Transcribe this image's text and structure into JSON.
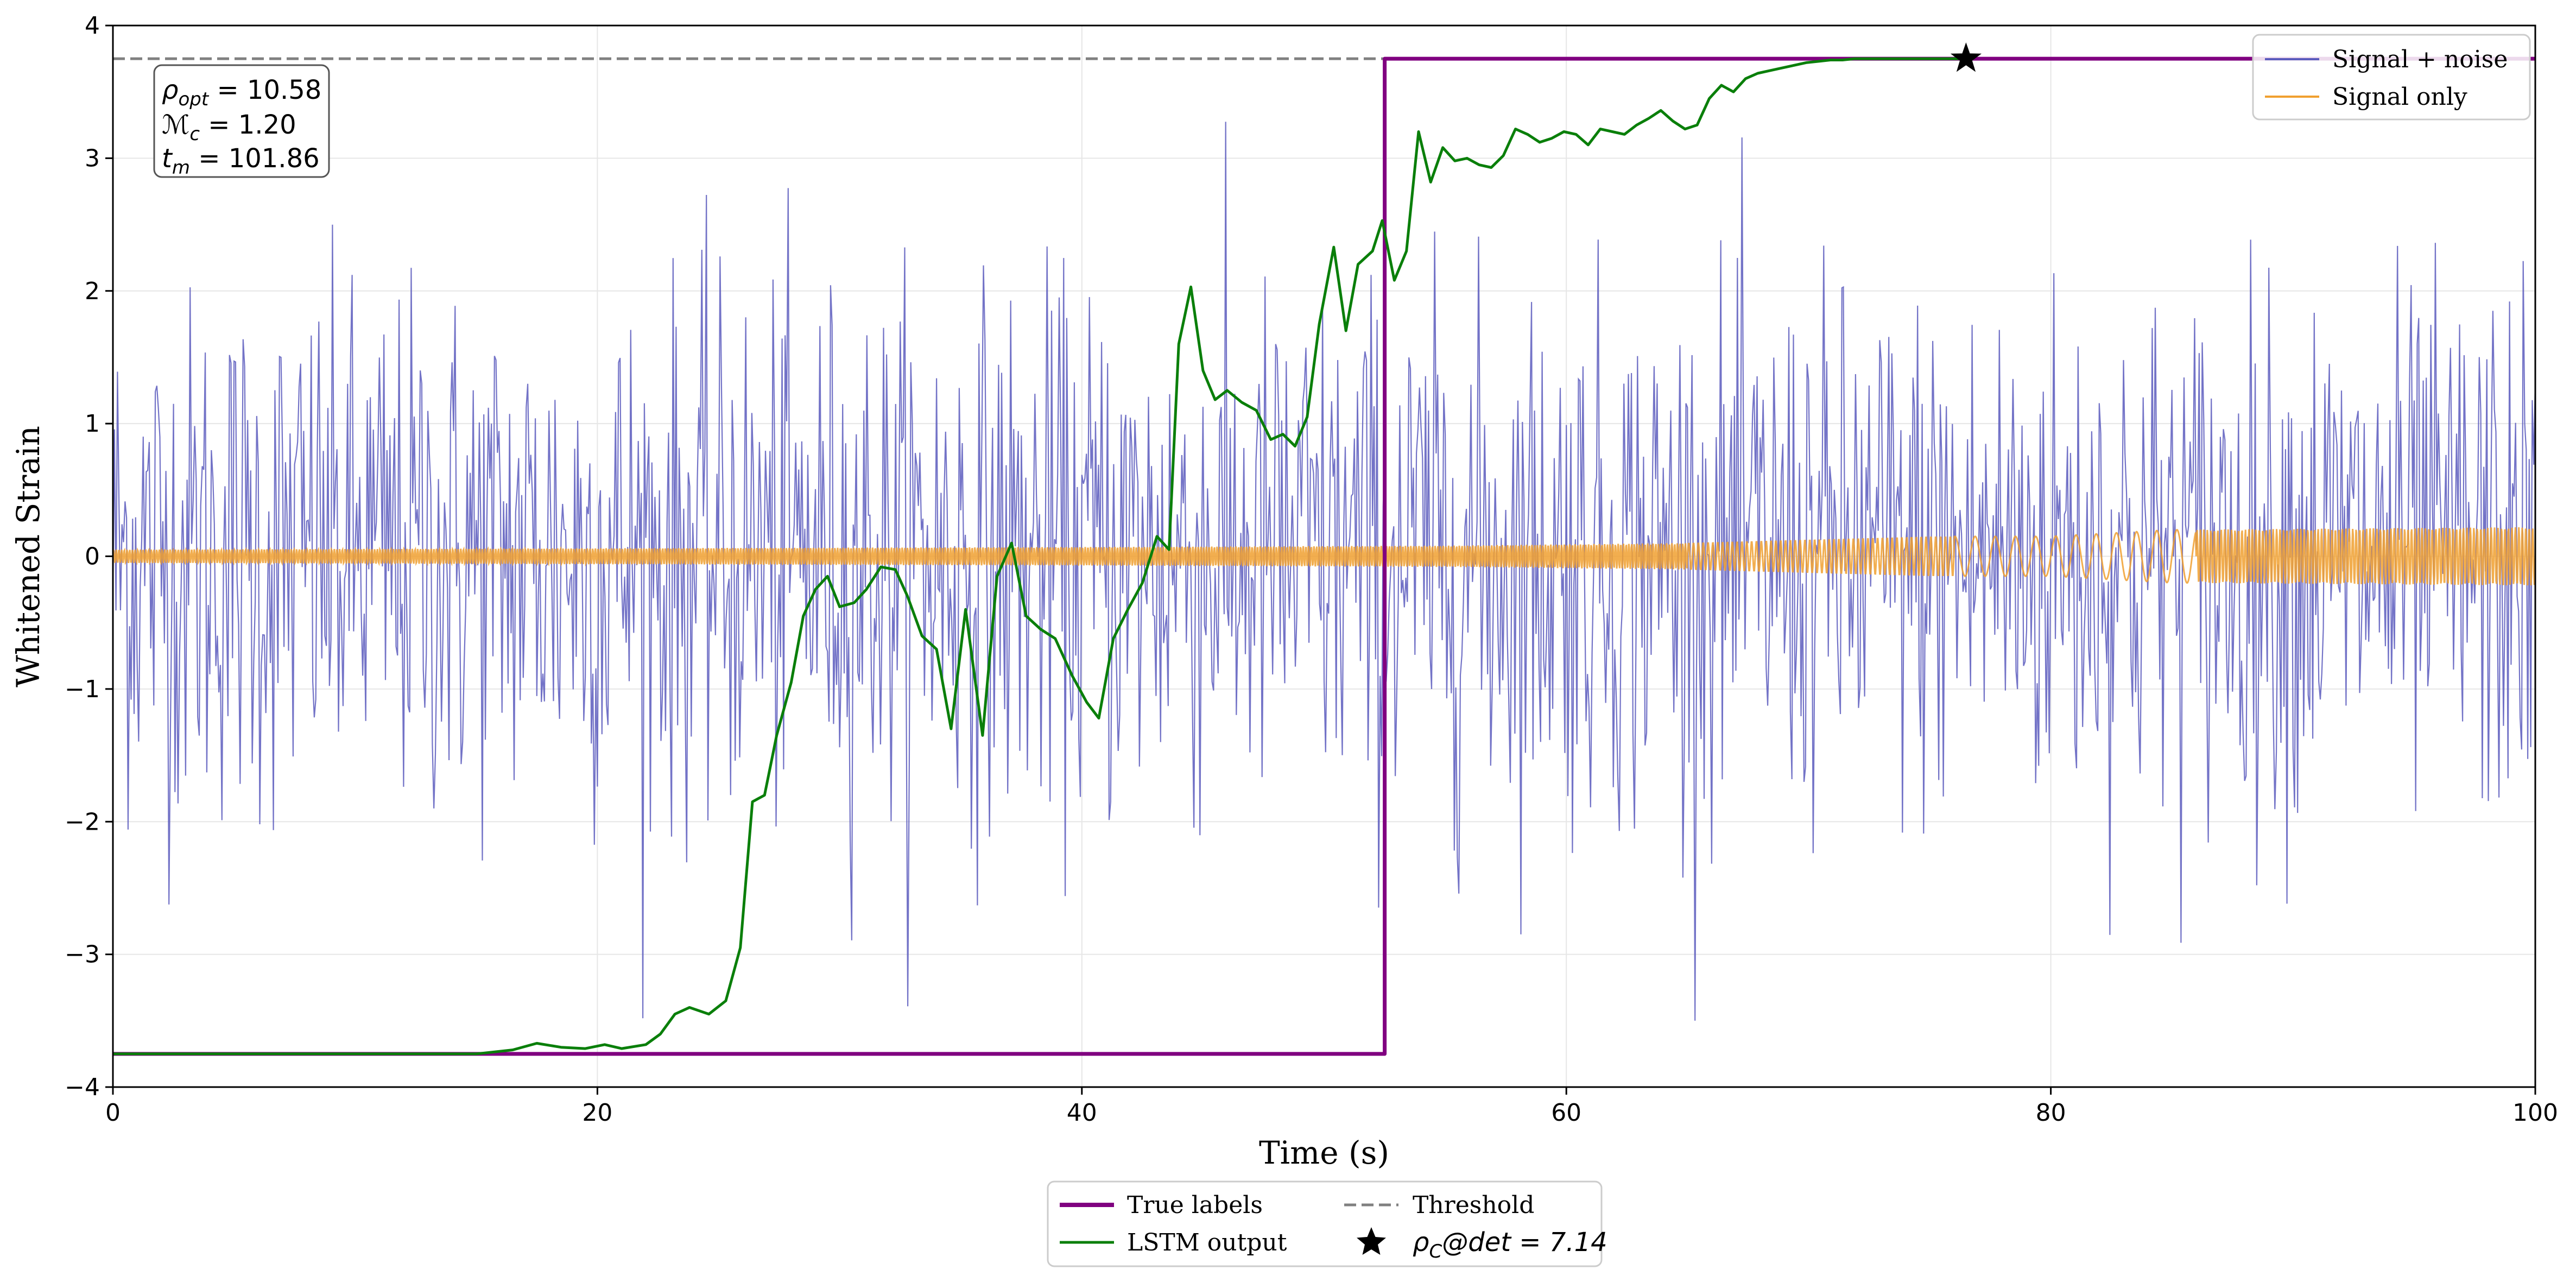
{
  "chart_data": {
    "type": "line",
    "title": "",
    "xlabel": "Time (s)",
    "ylabel": "Whitened Strain",
    "xlim": [
      0,
      100
    ],
    "ylim": [
      -4,
      4
    ],
    "x_ticks": [
      "0",
      "20",
      "40",
      "60",
      "80",
      "100"
    ],
    "y_ticks": [
      "−4",
      "−3",
      "−2",
      "−1",
      "0",
      "1",
      "2",
      "3",
      "4"
    ],
    "grid": true,
    "threshold": 3.75,
    "detection_point": {
      "x": 76.5,
      "y": 3.75
    },
    "annotation": {
      "rho_opt": "ρ",
      "rho_opt_sub": "opt",
      "rho_opt_val": " = 10.58",
      "mc": "ℳ",
      "mc_sub": "c",
      "mc_val": " = 1.20",
      "tm": "t",
      "tm_sub": "m",
      "tm_val": " = 101.86"
    },
    "noise_trace": {
      "name": "Signal + noise",
      "color": "#5b5bbd",
      "description_stats": {
        "center": 0,
        "typical_amplitude": 1.4,
        "max_abs": 3.5,
        "samples": 1600
      }
    },
    "signal_trace": {
      "name": "Signal only",
      "color": "#f0a030",
      "envelope": [
        [
          0,
          0.05
        ],
        [
          20,
          0.06
        ],
        [
          40,
          0.07
        ],
        [
          55,
          0.08
        ],
        [
          65,
          0.1
        ],
        [
          75,
          0.15
        ],
        [
          80,
          0.15
        ],
        [
          85,
          0.2
        ],
        [
          100,
          0.22
        ]
      ]
    },
    "series": [
      {
        "name": "True labels",
        "color": "#800080",
        "x": [
          0,
          52.5,
          52.5,
          100
        ],
        "y": [
          -3.75,
          -3.75,
          3.75,
          3.75
        ]
      },
      {
        "name": "LSTM output",
        "color": "#0a7f0a",
        "x": [
          0,
          15,
          16.5,
          17.5,
          18.5,
          19.5,
          20.3,
          21,
          22,
          22.6,
          23.2,
          23.8,
          24.6,
          25.3,
          25.9,
          26.4,
          26.9,
          27.4,
          28,
          28.5,
          29,
          29.5,
          30,
          30.6,
          31.1,
          31.7,
          32.3,
          32.8,
          33.4,
          34,
          34.6,
          35.2,
          35.9,
          36.5,
          37.1,
          37.7,
          38.3,
          38.9,
          39.6,
          40.2,
          40.7,
          41.3,
          41.9,
          42.5,
          43.1,
          43.6,
          44,
          44.5,
          45,
          45.5,
          46,
          46.6,
          47.2,
          47.8,
          48.3,
          48.8,
          49.3,
          49.8,
          50.4,
          50.9,
          51.4,
          52,
          52.4,
          52.9,
          53.4,
          53.9,
          54.4,
          54.9,
          55.4,
          55.9,
          56.4,
          56.9,
          57.4,
          57.9,
          58.4,
          58.9,
          59.4,
          59.9,
          60.4,
          60.9,
          61.4,
          61.9,
          62.4,
          62.9,
          63.4,
          63.9,
          64.4,
          64.9,
          65.4,
          65.9,
          66.4,
          66.9,
          67.4,
          67.9,
          68.4,
          68.9,
          69.4,
          69.9,
          70.4,
          70.9,
          71.4,
          71.9,
          72.4,
          72.9,
          73.4,
          73.9,
          74.4,
          75,
          76.5
        ],
        "y": [
          -3.75,
          -3.75,
          -3.72,
          -3.67,
          -3.7,
          -3.71,
          -3.68,
          -3.71,
          -3.68,
          -3.6,
          -3.45,
          -3.4,
          -3.45,
          -3.35,
          -2.95,
          -1.85,
          -1.8,
          -1.35,
          -0.95,
          -0.45,
          -0.25,
          -0.15,
          -0.38,
          -0.35,
          -0.25,
          -0.08,
          -0.1,
          -0.3,
          -0.6,
          -0.7,
          -1.3,
          -0.4,
          -1.35,
          -0.15,
          0.1,
          -0.45,
          -0.55,
          -0.62,
          -0.9,
          -1.1,
          -1.22,
          -0.62,
          -0.4,
          -0.2,
          0.15,
          0.05,
          1.6,
          2.03,
          1.4,
          1.18,
          1.25,
          1.16,
          1.1,
          0.88,
          0.92,
          0.83,
          1.05,
          1.75,
          2.33,
          1.7,
          2.2,
          2.3,
          2.53,
          2.08,
          2.3,
          3.2,
          2.82,
          3.08,
          2.98,
          3.0,
          2.95,
          2.93,
          3.02,
          3.22,
          3.18,
          3.12,
          3.15,
          3.2,
          3.18,
          3.1,
          3.22,
          3.2,
          3.18,
          3.25,
          3.3,
          3.36,
          3.28,
          3.22,
          3.25,
          3.45,
          3.55,
          3.5,
          3.6,
          3.64,
          3.66,
          3.68,
          3.7,
          3.72,
          3.73,
          3.74,
          3.74,
          3.75,
          3.75,
          3.75,
          3.75,
          3.75,
          3.75,
          3.75,
          3.75
        ]
      }
    ],
    "legend_upper": [
      "Signal + noise",
      "Signal only"
    ],
    "legend_lower": [
      "True labels",
      "LSTM output",
      "Threshold"
    ],
    "legend_star": {
      "pre": "ρ",
      "sub": "C",
      "post": "@det = 7.14"
    }
  }
}
